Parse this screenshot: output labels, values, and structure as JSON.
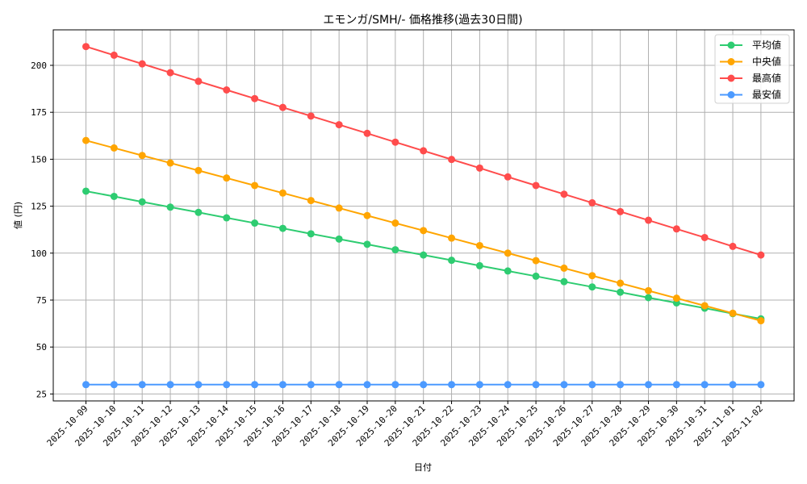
{
  "chart_data": {
    "type": "line",
    "title": "エモンガ/SMH/- 価格推移(過去30日間)",
    "xlabel": "日付",
    "ylabel": "値 (円)",
    "ylim": [
      20.5,
      218.5
    ],
    "yticks": [
      25,
      50,
      75,
      100,
      125,
      150,
      175,
      200
    ],
    "grid": true,
    "legend_position": "upper right",
    "categories": [
      "2025-10-09",
      "2025-10-10",
      "2025-10-11",
      "2025-10-12",
      "2025-10-13",
      "2025-10-14",
      "2025-10-15",
      "2025-10-16",
      "2025-10-17",
      "2025-10-18",
      "2025-10-19",
      "2025-10-20",
      "2025-10-21",
      "2025-10-22",
      "2025-10-23",
      "2025-10-24",
      "2025-10-25",
      "2025-10-26",
      "2025-10-27",
      "2025-10-28",
      "2025-10-29",
      "2025-10-30",
      "2025-10-31",
      "2025-11-01",
      "2025-11-02"
    ],
    "series": [
      {
        "name": "平均値",
        "color": "#2ecc71",
        "values": [
          133.0,
          130.2,
          127.3,
          124.5,
          121.7,
          118.8,
          116.0,
          113.2,
          110.3,
          107.5,
          104.7,
          101.8,
          99.0,
          96.2,
          93.3,
          90.5,
          87.7,
          84.8,
          82.0,
          79.2,
          76.3,
          73.5,
          70.7,
          67.8,
          65.0
        ]
      },
      {
        "name": "中央値",
        "color": "#ffa500",
        "values": [
          160,
          156,
          152,
          148,
          144,
          140,
          136,
          132,
          128,
          124,
          120,
          116,
          112,
          108,
          104,
          100,
          96,
          92,
          88,
          84,
          80,
          76,
          72,
          68,
          64
        ]
      },
      {
        "name": "最高値",
        "color": "#ff4c4c",
        "values": [
          210.0,
          205.4,
          200.8,
          196.1,
          191.5,
          186.9,
          182.3,
          177.6,
          173.0,
          168.4,
          163.8,
          159.1,
          154.5,
          149.9,
          145.3,
          140.6,
          136.0,
          131.4,
          126.8,
          122.1,
          117.5,
          112.9,
          108.3,
          103.6,
          99.0
        ]
      },
      {
        "name": "最安値",
        "color": "#4c9aff",
        "values": [
          30,
          30,
          30,
          30,
          30,
          30,
          30,
          30,
          30,
          30,
          30,
          30,
          30,
          30,
          30,
          30,
          30,
          30,
          30,
          30,
          30,
          30,
          30,
          30,
          30
        ]
      }
    ]
  }
}
